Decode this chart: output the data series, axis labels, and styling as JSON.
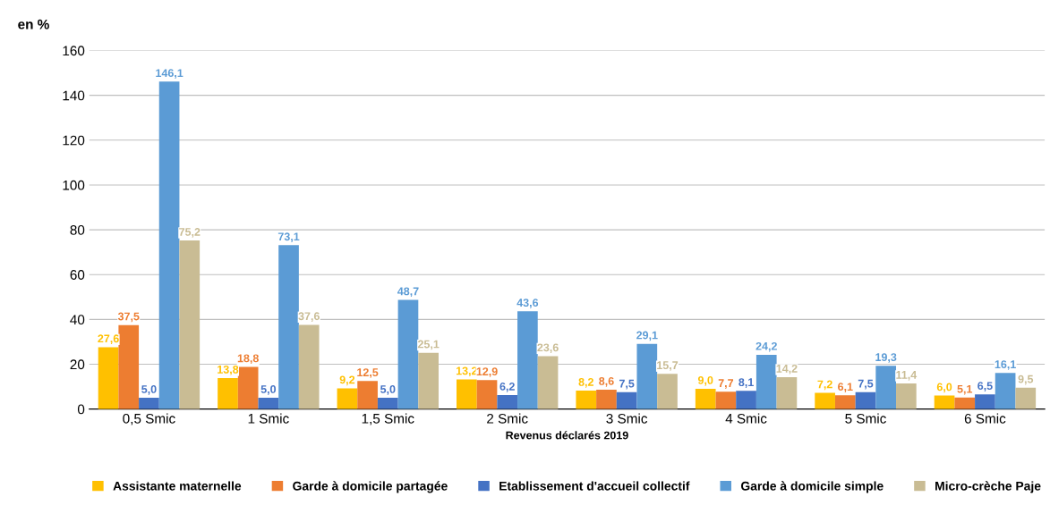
{
  "chart_data": {
    "type": "bar",
    "ylabel": "en %",
    "xlabel": "Revenus déclarés 2019",
    "categories": [
      "0,5 Smic",
      "1 Smic",
      "1,5 Smic",
      "2 Smic",
      "3 Smic",
      "4 Smic",
      "5 Smic",
      "6 Smic"
    ],
    "series": [
      {
        "name": "Assistante maternelle",
        "color": "#ffc000",
        "values": [
          27.6,
          13.8,
          9.2,
          13.2,
          8.2,
          9.0,
          7.2,
          6.0
        ],
        "value_labels": [
          "27,6",
          "13,8",
          "9,2",
          "13,2",
          "8,2",
          "9,0",
          "7,2",
          "6,0"
        ]
      },
      {
        "name": "Garde à domicile partagée",
        "color": "#ed7d31",
        "values": [
          37.5,
          18.8,
          12.5,
          12.9,
          8.6,
          7.7,
          6.1,
          5.1
        ],
        "value_labels": [
          "37,5",
          "18,8",
          "12,5",
          "12,9",
          "8,6",
          "7,7",
          "6,1",
          "5,1"
        ]
      },
      {
        "name": "Etablissement d'accueil collectif",
        "color": "#4472c4",
        "values": [
          5.0,
          5.0,
          5.0,
          6.2,
          7.5,
          8.1,
          7.5,
          6.5
        ],
        "value_labels": [
          "5,0",
          "5,0",
          "5,0",
          "6,2",
          "7,5",
          "8,1",
          "7,5",
          "6,5"
        ]
      },
      {
        "name": "Garde à domicile simple",
        "color": "#5b9bd5",
        "values": [
          146.1,
          73.1,
          48.7,
          43.6,
          29.1,
          24.2,
          19.3,
          16.1
        ],
        "value_labels": [
          "146,1",
          "73,1",
          "48,7",
          "43,6",
          "29,1",
          "24,2",
          "19,3",
          "16,1"
        ]
      },
      {
        "name": "Micro-crèche Paje",
        "color": "#c9bc94",
        "values": [
          75.2,
          37.6,
          25.1,
          23.6,
          15.7,
          14.2,
          11.4,
          9.5
        ],
        "value_labels": [
          "75,2",
          "37,6",
          "25,1",
          "23,6",
          "15,7",
          "14,2",
          "11,4",
          "9,5"
        ]
      }
    ],
    "ylim": [
      0,
      160
    ],
    "yticks": [
      0,
      20,
      40,
      60,
      80,
      100,
      120,
      140,
      160
    ],
    "grid": "y",
    "legend": "bottom"
  }
}
